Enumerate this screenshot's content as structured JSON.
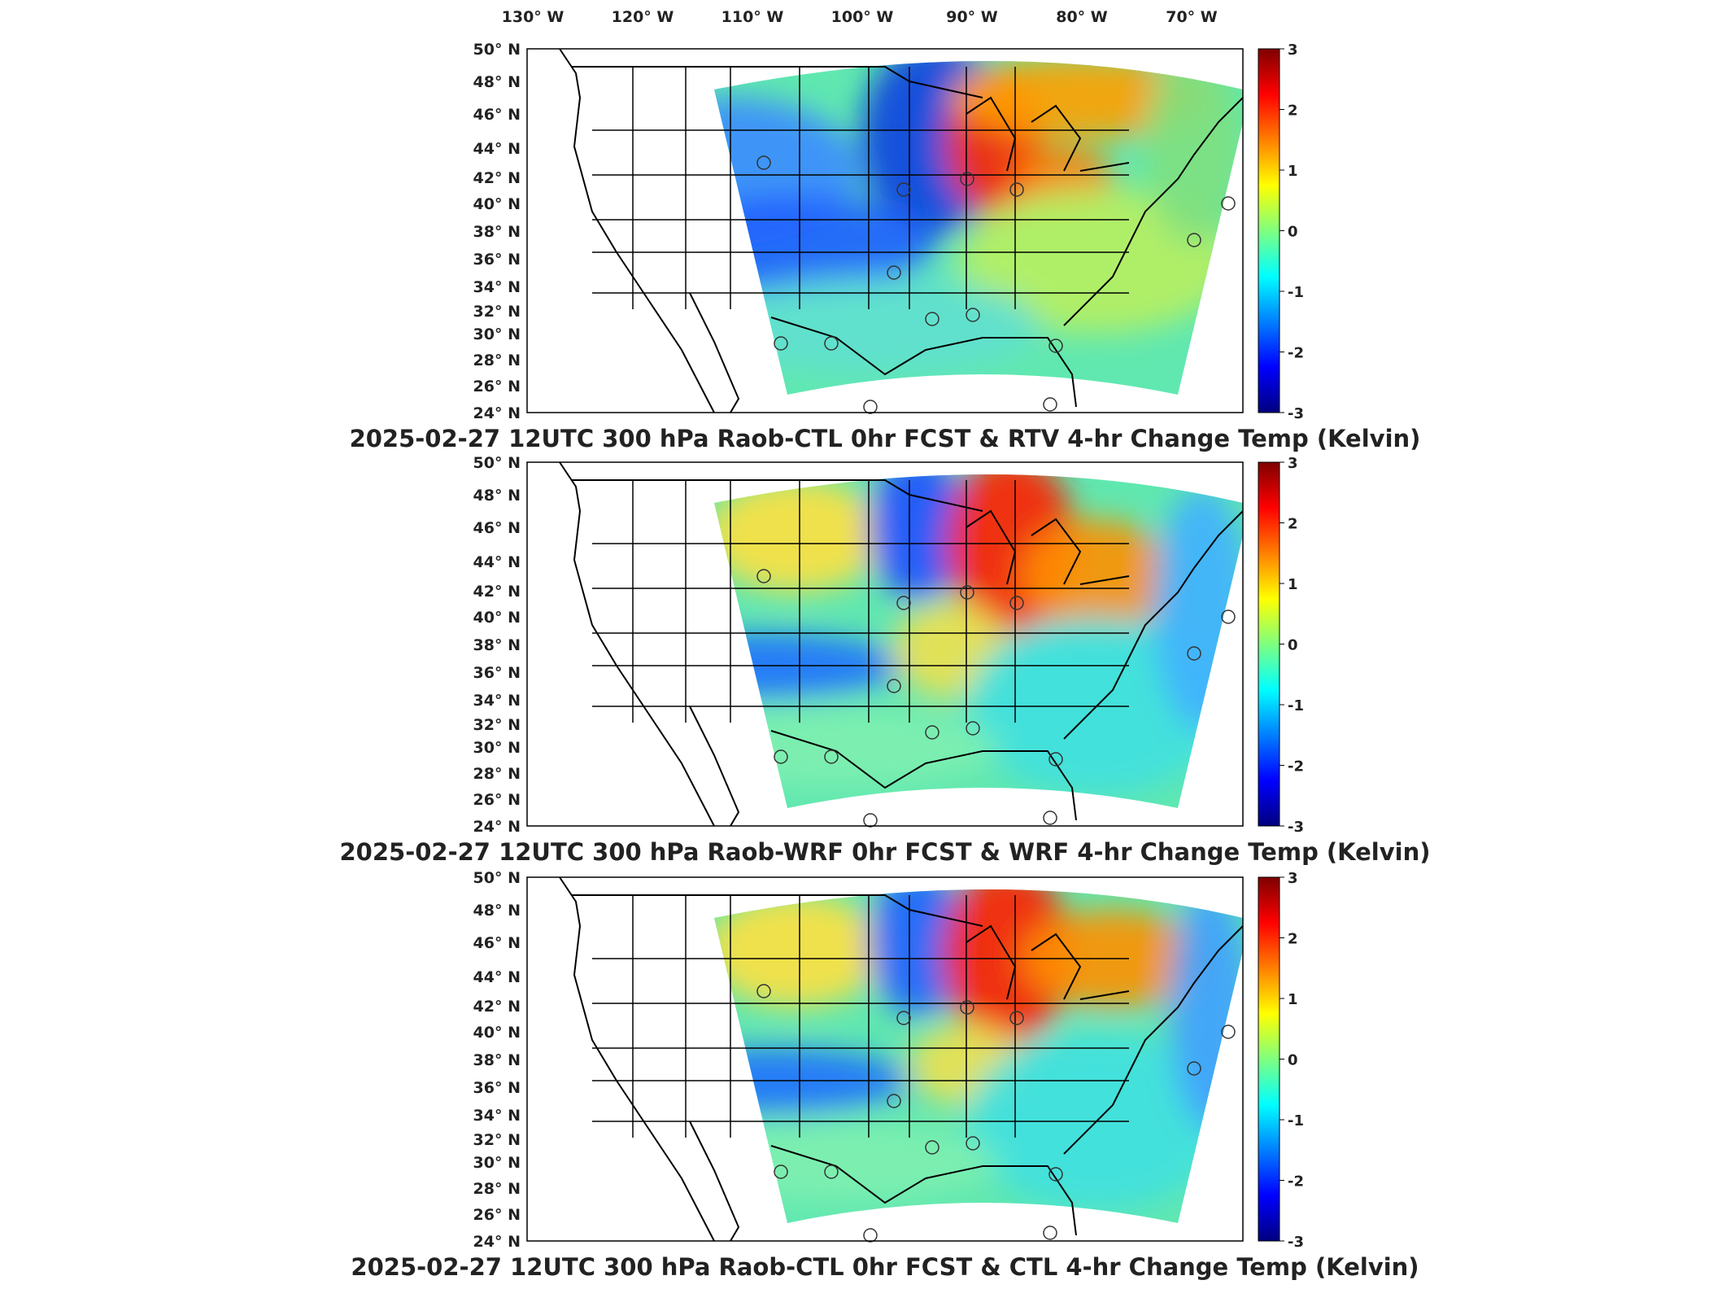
{
  "figure": {
    "lon_labels": [
      "130° W",
      "120° W",
      "110° W",
      "100° W",
      "90° W",
      "80° W",
      "70° W"
    ],
    "lat_labels": [
      "50° N",
      "48° N",
      "46° N",
      "44° N",
      "42° N",
      "40° N",
      "38° N",
      "36° N",
      "34° N",
      "32° N",
      "30° N",
      "28° N",
      "26° N",
      "24° N"
    ],
    "colorbar": {
      "ticks": [
        "3",
        "2",
        "1",
        "0",
        "-1",
        "-2",
        "-3"
      ],
      "range": [
        -3,
        3
      ],
      "colormap": "jet",
      "colors": [
        "#00007f",
        "#0000ff",
        "#007fff",
        "#00ffff",
        "#7fff7f",
        "#ffff00",
        "#ff7f00",
        "#ff0000",
        "#7f0000"
      ]
    },
    "map_style": {
      "background": "#ffffff",
      "border_color": "#000000",
      "marker": "open circle"
    }
  },
  "panels": [
    {
      "title": "2025-02-27 12UTC 300 hPa Raob-CTL 0hr FCST & RTV 4-hr Change Temp (Kelvin)",
      "variant": "rtv"
    },
    {
      "title": "2025-02-27 12UTC 300 hPa Raob-WRF 0hr FCST & WRF 4-hr Change Temp (Kelvin)",
      "variant": "wrf"
    },
    {
      "title": "2025-02-27 12UTC 300 hPa Raob-CTL 0hr FCST & CTL 4-hr Change Temp (Kelvin)",
      "variant": "ctl"
    }
  ]
}
